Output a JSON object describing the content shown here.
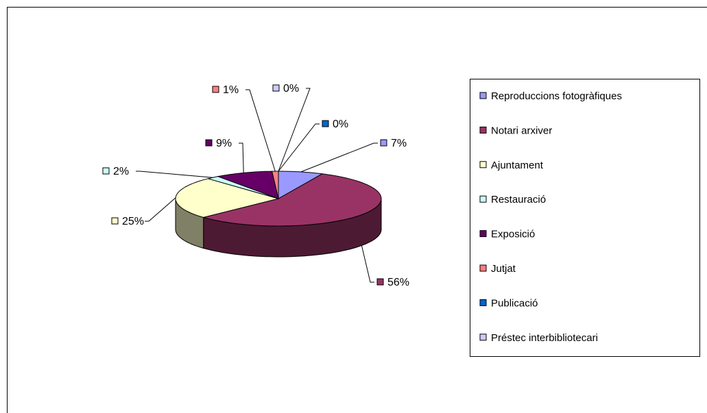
{
  "chart_data": {
    "type": "pie3d",
    "categories": [
      "Reproduccions fotogràfiques",
      "Notari arxiver",
      "Ajuntament",
      "Restauració",
      "Exposició",
      "Jutjat",
      "Publicació",
      "Préstec interbibliotecari"
    ],
    "values": [
      7,
      56,
      25,
      2,
      9,
      1,
      0,
      0
    ],
    "value_labels": [
      "7%",
      "56%",
      "25%",
      "2%",
      "9%",
      "1%",
      "0%",
      "0%"
    ],
    "colors": [
      "#9999FF",
      "#993366",
      "#FFFFCC",
      "#CCFFFF",
      "#660066",
      "#FF8080",
      "#0066CC",
      "#CCCCFF"
    ],
    "legend": "right"
  }
}
